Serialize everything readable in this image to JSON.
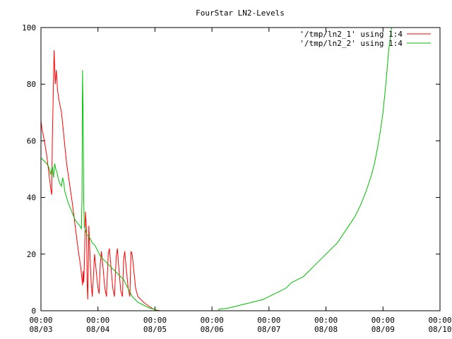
{
  "chart_data": {
    "type": "line",
    "title": "FourStar LN2-Levels",
    "xlabel": "",
    "ylabel": "",
    "x_unit": "days",
    "xlim": [
      0,
      7
    ],
    "ylim": [
      0,
      100
    ],
    "grid": false,
    "legend_position": "top-right",
    "x_ticks": [
      {
        "value": 0,
        "time": "00:00",
        "date": "08/03"
      },
      {
        "value": 1,
        "time": "00:00",
        "date": "08/04"
      },
      {
        "value": 2,
        "time": "00:00",
        "date": "08/05"
      },
      {
        "value": 3,
        "time": "00:00",
        "date": "08/06"
      },
      {
        "value": 4,
        "time": "00:00",
        "date": "08/07"
      },
      {
        "value": 5,
        "time": "00:00",
        "date": "08/08"
      },
      {
        "value": 6,
        "time": "00:00",
        "date": "08/09"
      },
      {
        "value": 7,
        "time": "00:00",
        "date": "08/10"
      }
    ],
    "y_ticks": [
      0,
      20,
      40,
      60,
      80,
      100
    ],
    "series": [
      {
        "name": "'/tmp/ln2_1' using 1:4",
        "color": "#ff0000",
        "points": [
          [
            0.0,
            67
          ],
          [
            0.02,
            64
          ],
          [
            0.06,
            60
          ],
          [
            0.1,
            55
          ],
          [
            0.13,
            50
          ],
          [
            0.16,
            45
          ],
          [
            0.18,
            42
          ],
          [
            0.19,
            41
          ],
          [
            0.2,
            60
          ],
          [
            0.23,
            92
          ],
          [
            0.25,
            80
          ],
          [
            0.27,
            85
          ],
          [
            0.29,
            78
          ],
          [
            0.32,
            74
          ],
          [
            0.36,
            70
          ],
          [
            0.4,
            62
          ],
          [
            0.45,
            52
          ],
          [
            0.5,
            45
          ],
          [
            0.55,
            38
          ],
          [
            0.6,
            30
          ],
          [
            0.65,
            22
          ],
          [
            0.7,
            15
          ],
          [
            0.72,
            11
          ],
          [
            0.73,
            9
          ],
          [
            0.74,
            14
          ],
          [
            0.75,
            10
          ],
          [
            0.76,
            15
          ],
          [
            0.77,
            25
          ],
          [
            0.78,
            35
          ],
          [
            0.8,
            28
          ],
          [
            0.81,
            10
          ],
          [
            0.82,
            4
          ],
          [
            0.83,
            15
          ],
          [
            0.84,
            30
          ],
          [
            0.86,
            20
          ],
          [
            0.88,
            10
          ],
          [
            0.9,
            5
          ],
          [
            0.92,
            12
          ],
          [
            0.94,
            20
          ],
          [
            0.97,
            14
          ],
          [
            1.0,
            8
          ],
          [
            1.02,
            6
          ],
          [
            1.04,
            16
          ],
          [
            1.06,
            21
          ],
          [
            1.09,
            15
          ],
          [
            1.12,
            8
          ],
          [
            1.15,
            5
          ],
          [
            1.18,
            20
          ],
          [
            1.2,
            22
          ],
          [
            1.23,
            15
          ],
          [
            1.26,
            8
          ],
          [
            1.29,
            5
          ],
          [
            1.32,
            19
          ],
          [
            1.34,
            22
          ],
          [
            1.37,
            14
          ],
          [
            1.4,
            7
          ],
          [
            1.43,
            5
          ],
          [
            1.45,
            18
          ],
          [
            1.47,
            21
          ],
          [
            1.5,
            14
          ],
          [
            1.53,
            8
          ],
          [
            1.56,
            5
          ],
          [
            1.58,
            21
          ],
          [
            1.6,
            20
          ],
          [
            1.63,
            14
          ],
          [
            1.66,
            8
          ],
          [
            1.7,
            5
          ],
          [
            1.8,
            3
          ],
          [
            1.9,
            1.5
          ],
          [
            2.0,
            0.3
          ],
          [
            2.1,
            0
          ]
        ]
      },
      {
        "name": "'/tmp/ln2_2' using 1:4",
        "color": "#00c000",
        "points": [
          [
            0.0,
            54
          ],
          [
            0.05,
            53
          ],
          [
            0.1,
            52
          ],
          [
            0.13,
            51
          ],
          [
            0.15,
            50
          ],
          [
            0.17,
            48
          ],
          [
            0.2,
            51
          ],
          [
            0.22,
            47
          ],
          [
            0.24,
            52
          ],
          [
            0.26,
            50
          ],
          [
            0.28,
            49
          ],
          [
            0.3,
            47
          ],
          [
            0.33,
            45
          ],
          [
            0.36,
            44
          ],
          [
            0.38,
            47
          ],
          [
            0.4,
            45
          ],
          [
            0.42,
            42
          ],
          [
            0.45,
            40
          ],
          [
            0.48,
            38
          ],
          [
            0.52,
            36
          ],
          [
            0.56,
            34
          ],
          [
            0.6,
            32
          ],
          [
            0.64,
            31
          ],
          [
            0.68,
            30
          ],
          [
            0.71,
            29
          ],
          [
            0.72,
            40
          ],
          [
            0.73,
            85
          ],
          [
            0.74,
            70
          ],
          [
            0.75,
            40
          ],
          [
            0.76,
            30
          ],
          [
            0.8,
            27
          ],
          [
            0.85,
            26
          ],
          [
            0.9,
            24
          ],
          [
            0.95,
            23
          ],
          [
            1.0,
            21
          ],
          [
            1.05,
            19
          ],
          [
            1.1,
            18
          ],
          [
            1.15,
            17
          ],
          [
            1.2,
            16
          ],
          [
            1.25,
            15
          ],
          [
            1.3,
            14
          ],
          [
            1.35,
            13
          ],
          [
            1.4,
            12
          ],
          [
            1.45,
            11
          ],
          [
            1.5,
            9
          ],
          [
            1.55,
            7
          ],
          [
            1.6,
            5
          ],
          [
            1.7,
            3
          ],
          [
            1.8,
            2
          ],
          [
            1.9,
            1
          ],
          [
            2.0,
            0.5
          ],
          [
            2.05,
            0
          ],
          [
            3.12,
            0
          ],
          [
            3.12,
            0.5
          ],
          [
            3.3,
            1
          ],
          [
            3.5,
            2
          ],
          [
            3.7,
            3
          ],
          [
            3.9,
            4
          ],
          [
            4.0,
            5
          ],
          [
            4.1,
            6
          ],
          [
            4.2,
            7
          ],
          [
            4.3,
            8
          ],
          [
            4.4,
            10
          ],
          [
            4.5,
            11
          ],
          [
            4.6,
            12
          ],
          [
            4.7,
            14
          ],
          [
            4.8,
            16
          ],
          [
            4.9,
            18
          ],
          [
            5.0,
            20
          ],
          [
            5.1,
            22
          ],
          [
            5.2,
            24
          ],
          [
            5.3,
            27
          ],
          [
            5.4,
            30
          ],
          [
            5.5,
            33
          ],
          [
            5.6,
            37
          ],
          [
            5.7,
            42
          ],
          [
            5.8,
            48
          ],
          [
            5.85,
            52
          ],
          [
            5.9,
            57
          ],
          [
            5.95,
            63
          ],
          [
            6.0,
            70
          ],
          [
            6.05,
            80
          ],
          [
            6.1,
            92
          ],
          [
            6.15,
            100
          ]
        ]
      }
    ]
  }
}
